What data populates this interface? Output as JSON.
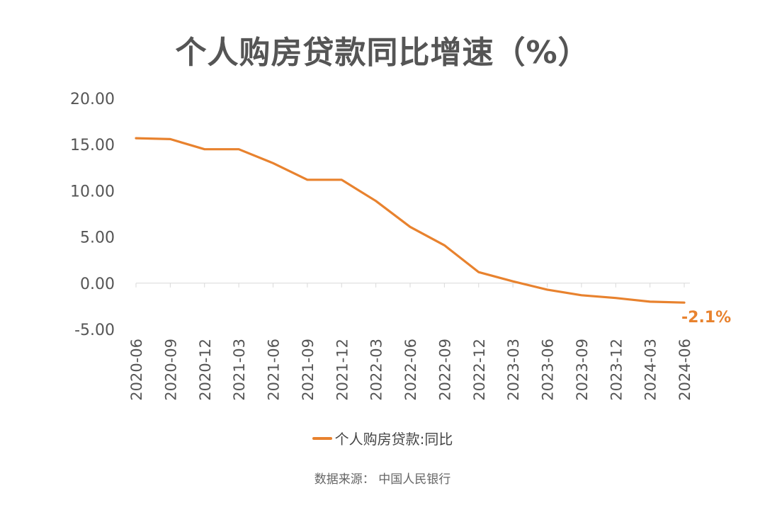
{
  "title": "个人购房贷款同比增速（%）",
  "source": "数据来源：  中国人民银行",
  "colors": {
    "line": "#E8822E",
    "axis_text": "#555555",
    "axis_line": "#D9D9D9"
  },
  "chart_data": {
    "type": "line",
    "title": "个人购房贷款同比增速（%）",
    "xlabel": "",
    "ylabel": "",
    "ylim": [
      -5,
      20
    ],
    "y_ticks": [
      "20.00",
      "15.00",
      "10.00",
      "5.00",
      "0.00",
      "-5.00"
    ],
    "grid": false,
    "legend_position": "bottom",
    "categories": [
      "2020-06",
      "2020-09",
      "2020-12",
      "2021-03",
      "2021-06",
      "2021-09",
      "2021-12",
      "2022-03",
      "2022-06",
      "2022-09",
      "2022-12",
      "2023-03",
      "2023-06",
      "2023-09",
      "2023-12",
      "2024-03",
      "2024-06"
    ],
    "series": [
      {
        "name": "个人购房贷款:同比",
        "values": [
          15.7,
          15.6,
          14.5,
          14.5,
          13.0,
          11.2,
          11.2,
          8.9,
          6.1,
          4.1,
          1.2,
          0.2,
          -0.7,
          -1.3,
          -1.6,
          -2.0,
          -2.1
        ]
      }
    ],
    "annotations": [
      {
        "category": "2024-06",
        "text": "-2.1%"
      }
    ]
  }
}
